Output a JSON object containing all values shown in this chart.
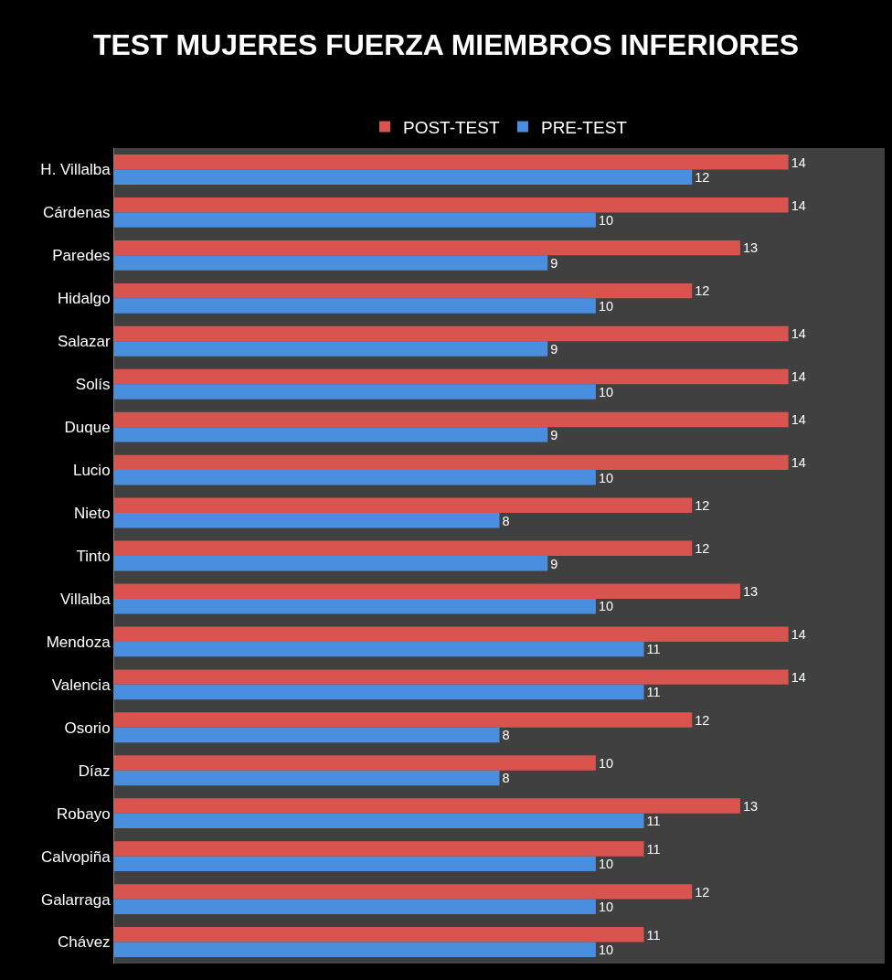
{
  "chart_data": {
    "type": "bar",
    "orientation": "horizontal",
    "title": "TEST MUJERES FUERZA MIEMBROS INFERIORES",
    "categories": [
      "H. Villalba",
      "Cárdenas",
      "Paredes",
      "Hidalgo",
      "Salazar",
      "Solís",
      "Duque",
      "Lucio",
      "Nieto",
      "Tinto",
      "Villalba",
      "Mendoza",
      "Valencia",
      "Osorio",
      "Díaz",
      "Robayo",
      "Calvopiña",
      "Galarraga",
      "Chávez"
    ],
    "series": [
      {
        "name": "POST-TEST",
        "color": "#d9534f",
        "values": [
          14,
          14,
          13,
          12,
          14,
          14,
          14,
          14,
          12,
          12,
          13,
          14,
          14,
          12,
          10,
          13,
          11,
          12,
          11
        ]
      },
      {
        "name": "PRE-TEST",
        "color": "#4a8fdf",
        "values": [
          12,
          10,
          9,
          10,
          9,
          10,
          9,
          10,
          8,
          9,
          10,
          11,
          11,
          8,
          8,
          11,
          10,
          10,
          10
        ]
      }
    ],
    "xlim": [
      0,
      16
    ],
    "data_labels": true,
    "legend": "top",
    "grid": false,
    "tick_labels": "y"
  }
}
